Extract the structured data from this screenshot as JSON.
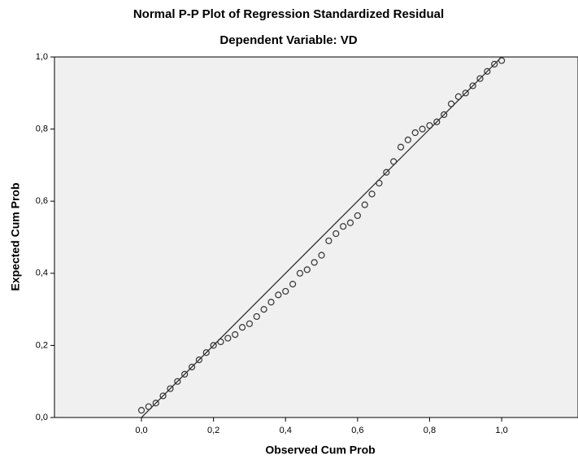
{
  "chart_data": {
    "type": "scatter",
    "title": "Normal P-P Plot of Regression Standardized Residual",
    "subtitle": "Dependent Variable: VD",
    "x_label": "Observed Cum Prob",
    "y_label": "Expected Cum Prob",
    "xlim": [
      -0.2415,
      1.212
    ],
    "ylim": [
      0,
      1
    ],
    "xticks": [
      {
        "value": 0,
        "label": "0,0"
      },
      {
        "value": 0.2,
        "label": "0,2"
      },
      {
        "value": 0.4,
        "label": "0,4"
      },
      {
        "value": 0.6,
        "label": "0,6"
      },
      {
        "value": 0.8,
        "label": "0,8"
      },
      {
        "value": 1,
        "label": "1,0"
      }
    ],
    "yticks": [
      {
        "value": 0,
        "label": "0,0"
      },
      {
        "value": 0.2,
        "label": "0,2"
      },
      {
        "value": 0.4,
        "label": "0,4"
      },
      {
        "value": 0.6,
        "label": "0,6"
      },
      {
        "value": 0.8,
        "label": "0,8"
      },
      {
        "value": 1,
        "label": "1,0"
      }
    ],
    "reference_line": {
      "x": [
        0,
        1
      ],
      "y": [
        0,
        1
      ]
    },
    "color": "#333333",
    "x": [
      0,
      0.02,
      0.04,
      0.06,
      0.08,
      0.1,
      0.12,
      0.14,
      0.16,
      0.18,
      0.2,
      0.22,
      0.24,
      0.26,
      0.28,
      0.3,
      0.32,
      0.34,
      0.36,
      0.38,
      0.4,
      0.42,
      0.44,
      0.46,
      0.48,
      0.5,
      0.52,
      0.54,
      0.56,
      0.58,
      0.6,
      0.62,
      0.64,
      0.66,
      0.68,
      0.7,
      0.72,
      0.74,
      0.76,
      0.78,
      0.8,
      0.82,
      0.84,
      0.86,
      0.88,
      0.9,
      0.92,
      0.94,
      0.96,
      0.98,
      1
    ],
    "values": [
      0.02,
      0.03,
      0.04,
      0.06,
      0.08,
      0.1,
      0.12,
      0.14,
      0.16,
      0.18,
      0.2,
      0.21,
      0.22,
      0.23,
      0.25,
      0.26,
      0.28,
      0.3,
      0.32,
      0.34,
      0.35,
      0.37,
      0.4,
      0.41,
      0.43,
      0.45,
      0.49,
      0.51,
      0.53,
      0.54,
      0.56,
      0.59,
      0.62,
      0.65,
      0.68,
      0.71,
      0.75,
      0.77,
      0.79,
      0.8,
      0.81,
      0.82,
      0.84,
      0.87,
      0.89,
      0.9,
      0.92,
      0.94,
      0.96,
      0.98,
      0.99
    ]
  }
}
